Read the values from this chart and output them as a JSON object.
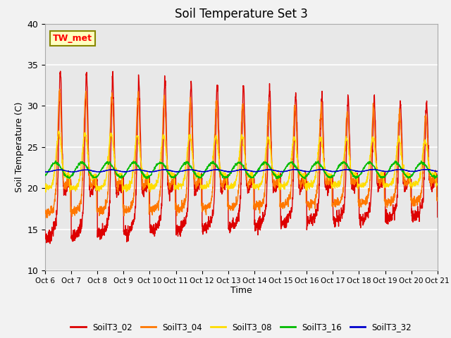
{
  "title": "Soil Temperature Set 3",
  "xlabel": "Time",
  "ylabel": "Soil Temperature (C)",
  "ylim": [
    10,
    40
  ],
  "yticks": [
    10,
    15,
    20,
    25,
    30,
    35,
    40
  ],
  "annotation_text": "TW_met",
  "colors": {
    "SoilT3_02": "#dd0000",
    "SoilT3_04": "#ff7700",
    "SoilT3_08": "#ffdd00",
    "SoilT3_16": "#00bb00",
    "SoilT3_32": "#0000cc"
  },
  "x_tick_labels": [
    "Oct 6",
    "Oct 7",
    "Oct 8",
    "Oct 9",
    "Oct 10",
    "Oct 11",
    "Oct 12",
    "Oct 13",
    "Oct 14",
    "Oct 15",
    "Oct 16",
    "Oct 17",
    "Oct 18",
    "Oct 19",
    "Oct 20",
    "Oct 21"
  ],
  "bg_color": "#e8e8e8",
  "grid_color": "#ffffff",
  "fig_bg": "#f2f2f2",
  "linewidth": 1.0
}
